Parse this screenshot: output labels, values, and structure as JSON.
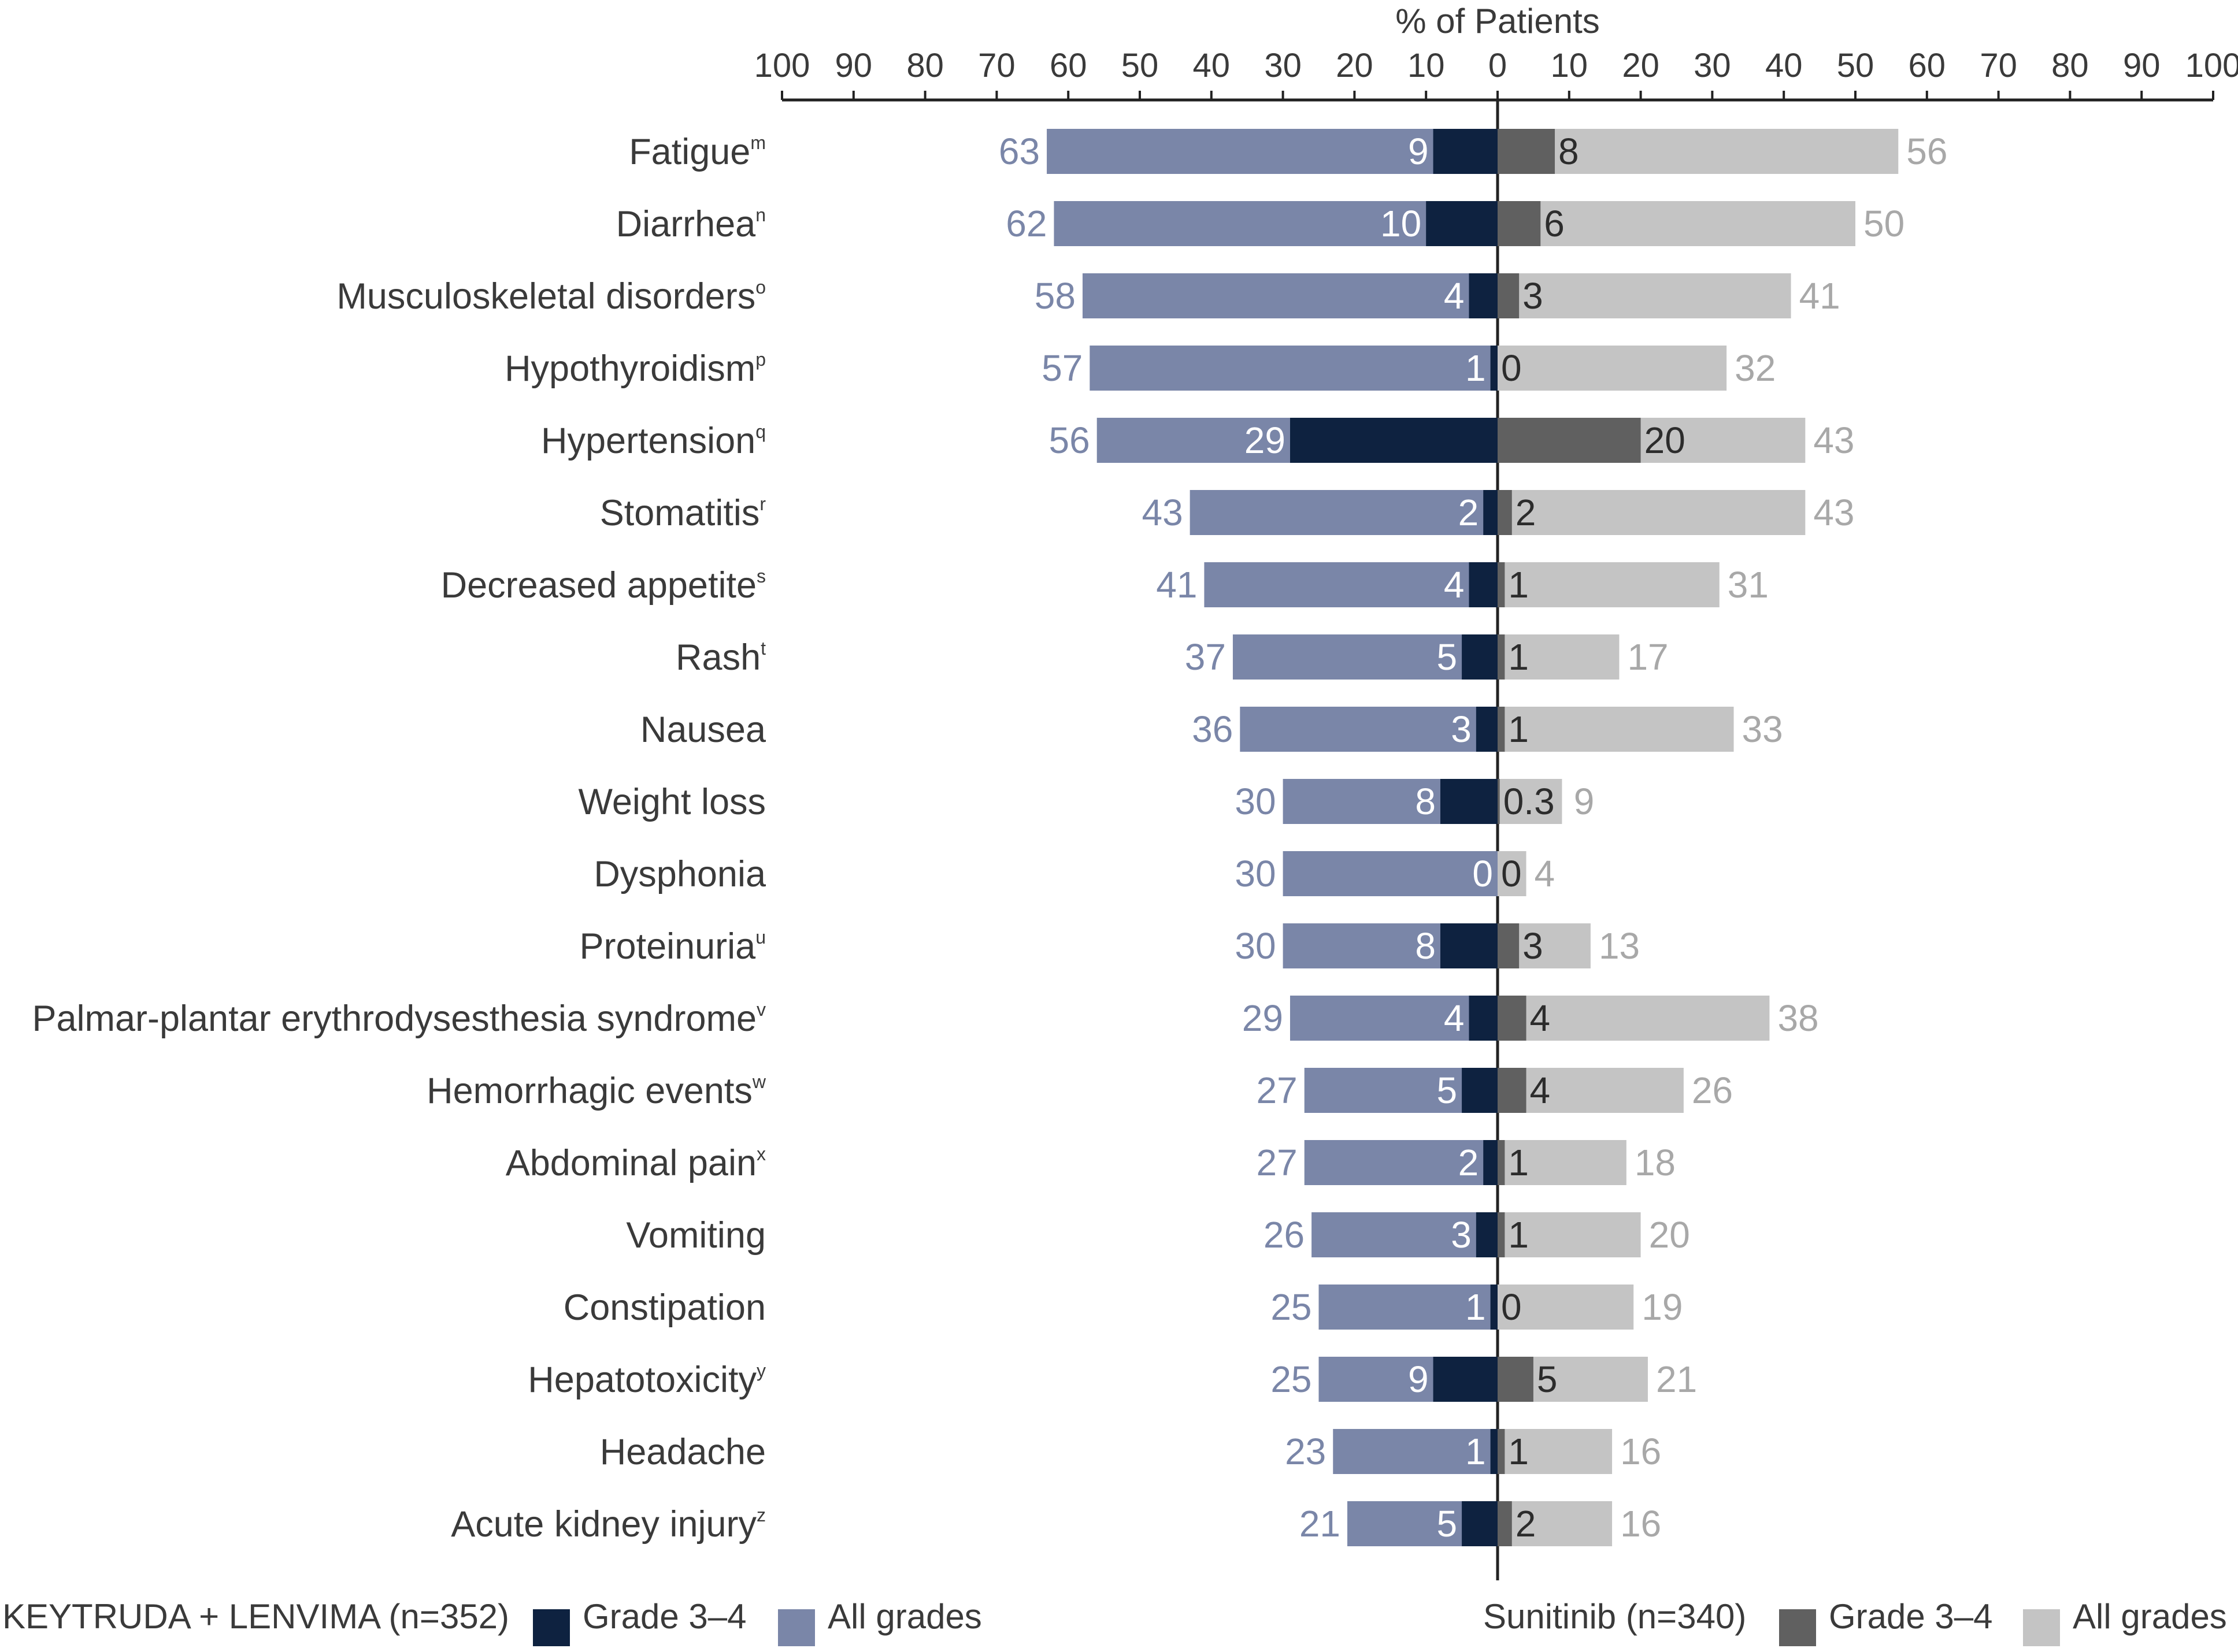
{
  "chart_data": {
    "type": "bar",
    "orientation": "horizontal-diverging",
    "xlabel": "% of Patients",
    "xlim_left": [
      100,
      0
    ],
    "xlim_right": [
      0,
      100
    ],
    "ticks_left": [
      "100",
      "90",
      "80",
      "70",
      "60",
      "50",
      "40",
      "30",
      "20",
      "10"
    ],
    "ticks_right": [
      "0",
      "10",
      "20",
      "30",
      "40",
      "50",
      "60",
      "70",
      "80",
      "90",
      "100"
    ],
    "categories": [
      {
        "name": "Fatigue",
        "sup": "m"
      },
      {
        "name": "Diarrhea",
        "sup": "n"
      },
      {
        "name": "Musculoskeletal disorders",
        "sup": "o"
      },
      {
        "name": "Hypothyroidism",
        "sup": "p"
      },
      {
        "name": "Hypertension",
        "sup": "q"
      },
      {
        "name": "Stomatitis",
        "sup": "r"
      },
      {
        "name": "Decreased appetite",
        "sup": "s"
      },
      {
        "name": "Rash",
        "sup": "t"
      },
      {
        "name": "Nausea",
        "sup": ""
      },
      {
        "name": "Weight loss",
        "sup": ""
      },
      {
        "name": "Dysphonia",
        "sup": ""
      },
      {
        "name": "Proteinuria",
        "sup": "u"
      },
      {
        "name": "Palmar-plantar erythrodysesthesia syndrome",
        "sup": "v"
      },
      {
        "name": "Hemorrhagic events",
        "sup": "w"
      },
      {
        "name": "Abdominal pain",
        "sup": "x"
      },
      {
        "name": "Vomiting",
        "sup": ""
      },
      {
        "name": "Constipation",
        "sup": ""
      },
      {
        "name": "Hepatotoxicity",
        "sup": "y"
      },
      {
        "name": "Headache",
        "sup": ""
      },
      {
        "name": "Acute kidney injury",
        "sup": "z"
      }
    ],
    "series": [
      {
        "name": "KEYTRUDA + LENVIMA All grades",
        "side": "left",
        "color": "#7a86a8",
        "values": [
          63,
          62,
          58,
          57,
          56,
          43,
          41,
          37,
          36,
          30,
          30,
          30,
          29,
          27,
          27,
          26,
          25,
          25,
          23,
          21
        ],
        "labels": [
          "63",
          "62",
          "58",
          "57",
          "56",
          "43",
          "41",
          "37",
          "36",
          "30",
          "30",
          "30",
          "29",
          "27",
          "27",
          "26",
          "25",
          "25",
          "23",
          "21"
        ]
      },
      {
        "name": "KEYTRUDA + LENVIMA Grade 3–4",
        "side": "left",
        "color": "#0e2240",
        "values": [
          9,
          10,
          4,
          1,
          29,
          2,
          4,
          5,
          3,
          8,
          0,
          8,
          4,
          5,
          2,
          3,
          1,
          9,
          1,
          5
        ],
        "labels": [
          "9",
          "10",
          "4",
          "1",
          "29",
          "2",
          "4",
          "5",
          "3",
          "8",
          "0",
          "8",
          "4",
          "5",
          "2",
          "3",
          "1",
          "9",
          "1",
          "5"
        ]
      },
      {
        "name": "Sunitinib All grades",
        "side": "right",
        "color": "#c4c4c4",
        "values": [
          56,
          50,
          41,
          32,
          43,
          43,
          31,
          17,
          33,
          9,
          4,
          13,
          38,
          26,
          18,
          20,
          19,
          21,
          16,
          16
        ],
        "labels": [
          "56",
          "50",
          "41",
          "32",
          "43",
          "43",
          "31",
          "17",
          "33",
          "9",
          "4",
          "13",
          "38",
          "26",
          "18",
          "20",
          "19",
          "21",
          "16",
          "16"
        ]
      },
      {
        "name": "Sunitinib Grade 3–4",
        "side": "right",
        "color": "#606060",
        "values": [
          8,
          6,
          3,
          0,
          20,
          2,
          1,
          1,
          1,
          0.3,
          0,
          3,
          4,
          4,
          1,
          1,
          0,
          5,
          1,
          2
        ],
        "labels": [
          "8",
          "6",
          "3",
          "0",
          "20",
          "2",
          "1",
          "1",
          "1",
          "0.3",
          "0",
          "3",
          "4",
          "4",
          "1",
          "1",
          "0",
          "5",
          "1",
          "2"
        ]
      }
    ],
    "legend": {
      "placement": "bottom",
      "left_group_title": "KEYTRUDA + LENVIMA (n=352)",
      "right_group_title": "Sunitinib (n=340)",
      "left_items": [
        {
          "label": "Grade 3–4",
          "color": "#0e2240"
        },
        {
          "label": "All grades",
          "color": "#7a86a8"
        }
      ],
      "right_items": [
        {
          "label": "Grade 3–4",
          "color": "#606060"
        },
        {
          "label": "All grades",
          "color": "#c4c4c4"
        }
      ]
    }
  }
}
